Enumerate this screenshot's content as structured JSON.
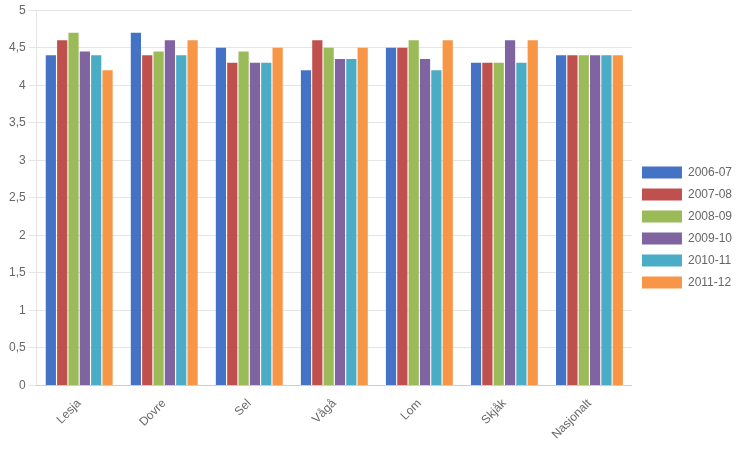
{
  "chart_data": {
    "type": "bar",
    "categories": [
      "Lesja",
      "Dovre",
      "Sel",
      "Vågå",
      "Lom",
      "Skjåk",
      "Nasjonalt"
    ],
    "series": [
      {
        "name": "2006-07",
        "color": "#4472C4",
        "values": [
          4.4,
          4.7,
          4.5,
          4.2,
          4.5,
          4.3,
          4.4
        ]
      },
      {
        "name": "2007-08",
        "color": "#C0504D",
        "values": [
          4.6,
          4.4,
          4.3,
          4.6,
          4.5,
          4.3,
          4.4
        ]
      },
      {
        "name": "2008-09",
        "color": "#9BBB59",
        "values": [
          4.7,
          4.45,
          4.45,
          4.5,
          4.6,
          4.3,
          4.4
        ]
      },
      {
        "name": "2009-10",
        "color": "#8064A2",
        "values": [
          4.45,
          4.6,
          4.3,
          4.35,
          4.35,
          4.6,
          4.4
        ]
      },
      {
        "name": "2010-11",
        "color": "#4BACC6",
        "values": [
          4.4,
          4.4,
          4.3,
          4.35,
          4.2,
          4.3,
          4.4
        ]
      },
      {
        "name": "2011-12",
        "color": "#F79646",
        "values": [
          4.2,
          4.6,
          4.5,
          4.5,
          4.6,
          4.6,
          4.4
        ]
      }
    ],
    "ylim": [
      0,
      5
    ],
    "yticks": [
      0,
      {
        "value": 0.5,
        "label": "0,5"
      },
      1,
      {
        "value": 1.5,
        "label": "1,5"
      },
      2,
      {
        "value": 2.5,
        "label": "2,5"
      },
      3,
      {
        "value": 3.5,
        "label": "3,5"
      },
      4,
      {
        "value": 4.5,
        "label": "4,5"
      },
      5
    ],
    "grid": true,
    "legend": "right"
  }
}
